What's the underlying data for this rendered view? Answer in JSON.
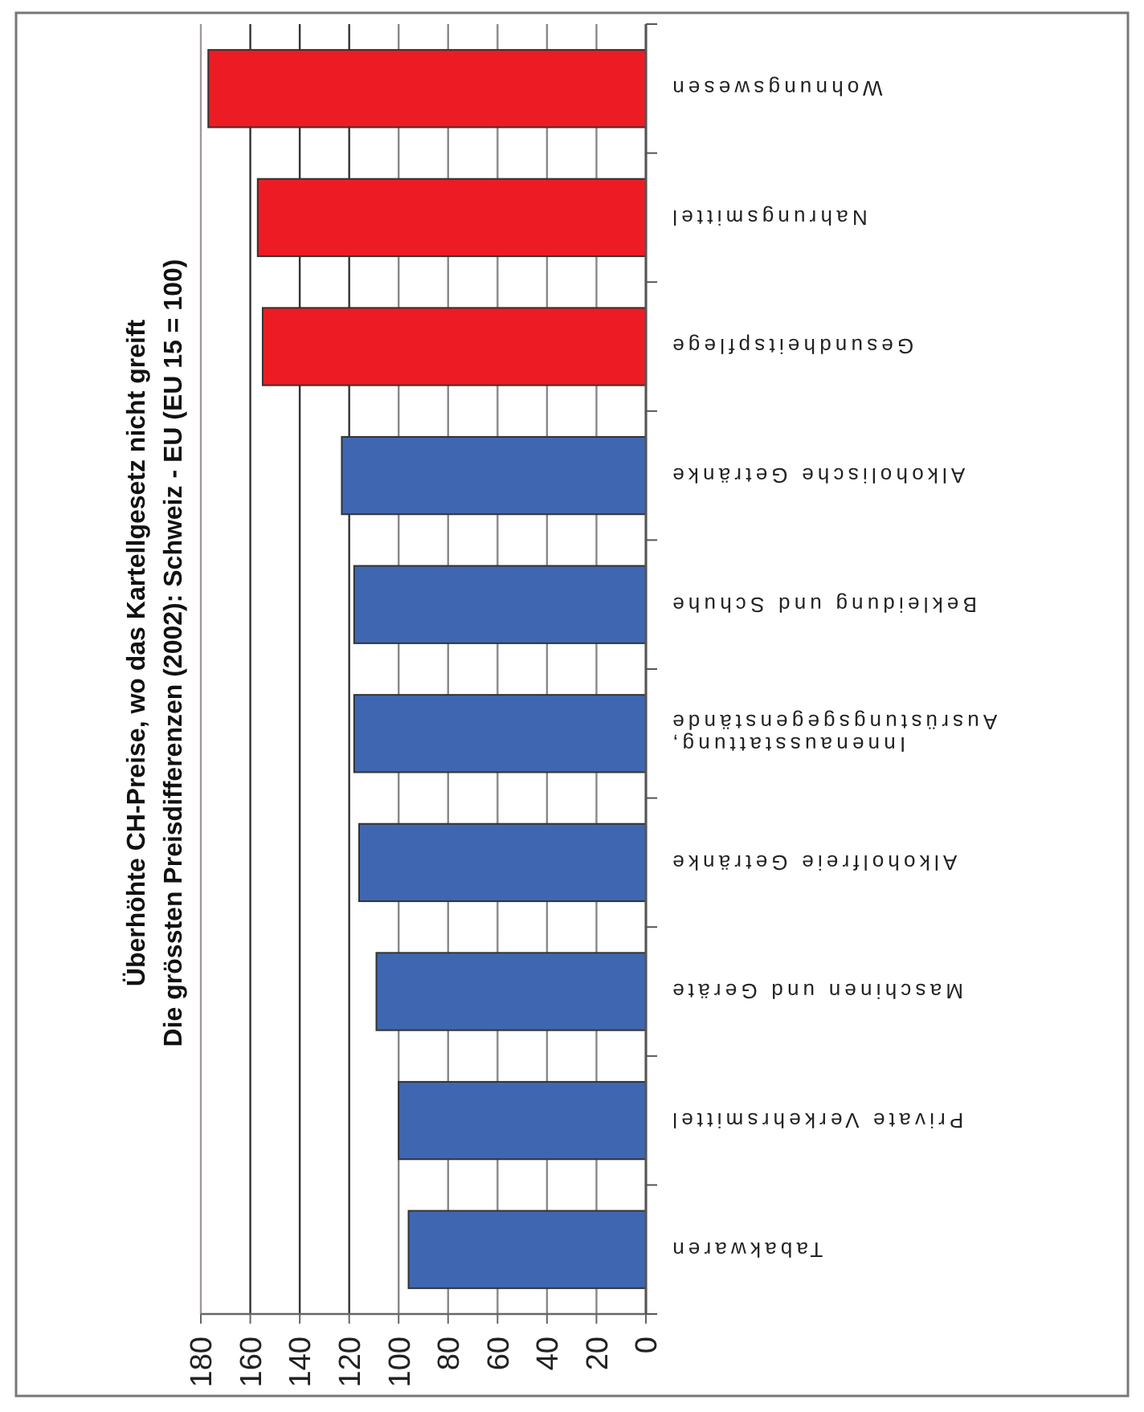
{
  "chart_data": {
    "type": "bar",
    "orientation": "horizontal",
    "title": "Überhöhte CH-Preise, wo das Kartellgesetz nicht greift",
    "subtitle": "Die grössten Preisdifferenzen (2002): Schweiz - EU (EU 15 = 100)",
    "categories": [
      "Wohnungswesen",
      "Nahrungsmittel",
      "Gesundheitspflege",
      "Alkoholische Getränke",
      "Bekleidung und Schuhe",
      "Innenausstattung, Ausrüstungsgegenstände",
      "Alkoholfreie Getränke",
      "Maschinen und Geräte",
      "Private Verkehrsmittel",
      "Tabakwaren"
    ],
    "values": [
      177,
      157,
      155,
      123,
      118,
      118,
      116,
      109,
      100,
      96
    ],
    "colors": [
      "#ed1c24",
      "#ed1c24",
      "#ed1c24",
      "#3f67b1",
      "#3f67b1",
      "#3f67b1",
      "#3f67b1",
      "#3f67b1",
      "#3f67b1",
      "#3f67b1"
    ],
    "xlim": [
      180,
      0
    ],
    "xticks": [
      180,
      160,
      140,
      120,
      100,
      80,
      60,
      40,
      20,
      0
    ],
    "grid": "x"
  }
}
